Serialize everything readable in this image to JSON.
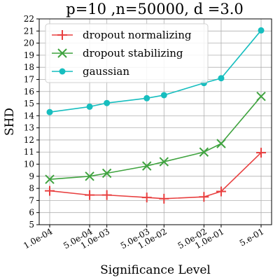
{
  "chart_data": {
    "type": "line",
    "title": "p=10 ,n=50000, d =3.0",
    "xlabel": "Significance Level",
    "ylabel": "SHD",
    "x_tick_labels": [
      "1.0e-04",
      "5.0e-04",
      "1.0e-03",
      "5.0e-03",
      "1.0e-02",
      "5.0e-02",
      "1.0e-01",
      "5.e-01"
    ],
    "x_values": [
      0.0001,
      0.0005,
      0.001,
      0.005,
      0.01,
      0.05,
      0.1,
      0.5
    ],
    "x_scale": "log",
    "ylim": [
      5,
      22
    ],
    "yticks": [
      5,
      6,
      7,
      8,
      9,
      10,
      11,
      12,
      13,
      14,
      15,
      16,
      17,
      18,
      19,
      20,
      21,
      22
    ],
    "grid": true,
    "legend_position": "top-left",
    "series": [
      {
        "name": "dropout normalizing",
        "color": "#e84040",
        "marker": "plus",
        "values": [
          7.8,
          7.45,
          7.45,
          7.25,
          7.15,
          7.3,
          7.75,
          10.95
        ]
      },
      {
        "name": "dropout stabilizing",
        "color": "#3fa33f",
        "marker": "x",
        "values": [
          8.75,
          9.0,
          9.25,
          9.85,
          10.2,
          11.0,
          11.7,
          15.6
        ]
      },
      {
        "name": "gaussian",
        "color": "#17bebf",
        "marker": "circle",
        "values": [
          14.3,
          14.75,
          15.05,
          15.45,
          15.7,
          16.7,
          17.1,
          21.05
        ]
      }
    ]
  }
}
